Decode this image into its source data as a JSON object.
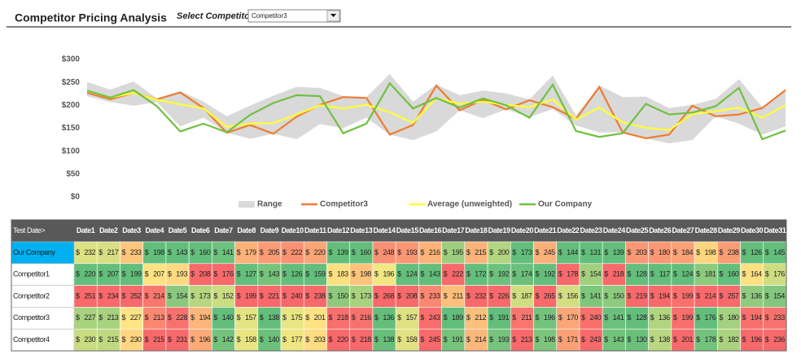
{
  "header": {
    "title": "Competitor Pricing Analysis",
    "select_label": "Select Competitor:",
    "selected": "Competitor3"
  },
  "chart_data": {
    "type": "line",
    "ylim": [
      0,
      300
    ],
    "yticks": [
      {
        "value": 0,
        "label": "$0"
      },
      {
        "value": 50,
        "label": "$50"
      },
      {
        "value": 100,
        "label": "$100"
      },
      {
        "value": 150,
        "label": "$150"
      },
      {
        "value": 200,
        "label": "$200"
      },
      {
        "value": 250,
        "label": "$250"
      },
      {
        "value": 300,
        "label": "$300"
      }
    ],
    "range": {
      "name": "Range",
      "color": "#d9d9d9",
      "low": [
        220,
        207,
        199,
        207,
        154,
        173,
        140,
        127,
        138,
        126,
        159,
        150,
        173,
        136,
        124,
        143,
        189,
        172,
        191,
        174,
        192,
        156,
        141,
        141,
        128,
        117,
        124,
        176,
        160,
        136,
        154
      ],
      "high": [
        251,
        234,
        252,
        215,
        231,
        208,
        176,
        199,
        221,
        240,
        238,
        220,
        218,
        268,
        208,
        245,
        222,
        232,
        226,
        213,
        265,
        178,
        243,
        218,
        219,
        194,
        201,
        214,
        257,
        196,
        236
      ]
    },
    "series": [
      {
        "name": "Competitor3",
        "color": "#ed7d31",
        "values": [
          227,
          213,
          227,
          213,
          228,
          194,
          140,
          157,
          138,
          175,
          201,
          218,
          216,
          136,
          157,
          243,
          189,
          212,
          191,
          211,
          196,
          170,
          240,
          141,
          128,
          136,
          199,
          176,
          180,
          194,
          233
        ]
      },
      {
        "name": "Average (unweighted)",
        "color": "#ffff33",
        "values": [
          232,
          217,
          227,
          212,
          202,
          193,
          153,
          160,
          161,
          180,
          200,
          193,
          201,
          185,
          162,
          216,
          203,
          208,
          201,
          196,
          213,
          169,
          195,
          163,
          151,
          146,
          181,
          187,
          195,
          173,
          200
        ]
      },
      {
        "name": "Our Company",
        "color": "#70c040",
        "values": [
          232,
          217,
          233,
          198,
          143,
          160,
          141,
          179,
          205,
          222,
          220,
          139,
          160,
          248,
          193,
          216,
          195,
          215,
          200,
          173,
          245,
          144,
          131,
          139,
          203,
          180,
          184,
          198,
          238,
          126,
          145
        ]
      }
    ]
  },
  "table": {
    "corner": "Test Date>",
    "currency": "$",
    "color_scale": [
      "#63be7b",
      "#ffeb84",
      "#f8696b"
    ],
    "columns": [
      "Date1",
      "Date2",
      "Date3",
      "Date4",
      "Date5",
      "Date6",
      "Date7",
      "Date8",
      "Date9",
      "Date10",
      "Date11",
      "Date12",
      "Date13",
      "Date14",
      "Date15",
      "Date16",
      "Date17",
      "Date18",
      "Date19",
      "Date20",
      "Date21",
      "Date22",
      "Date23",
      "Date24",
      "Date25",
      "Date26",
      "Date27",
      "Date28",
      "Date29",
      "Date30",
      "Date31"
    ],
    "rows": [
      {
        "name": "Our Company",
        "values": [
          232,
          217,
          233,
          198,
          143,
          160,
          141,
          179,
          205,
          222,
          220,
          139,
          160,
          248,
          193,
          216,
          195,
          215,
          200,
          173,
          245,
          144,
          131,
          139,
          203,
          180,
          184,
          198,
          238,
          126,
          145
        ]
      },
      {
        "name": "Competitor1",
        "values": [
          220,
          207,
          199,
          207,
          193,
          208,
          176,
          127,
          143,
          126,
          159,
          183,
          198,
          196,
          124,
          143,
          222,
          172,
          192,
          174,
          192,
          178,
          154,
          218,
          128,
          117,
          124,
          181,
          160,
          164,
          176
        ]
      },
      {
        "name": "Competitor2",
        "values": [
          251,
          234,
          252,
          214,
          154,
          173,
          152,
          199,
          221,
          240,
          238,
          150,
          173,
          268,
          208,
          233,
          211,
          232,
          226,
          187,
          265,
          156,
          141,
          150,
          219,
          194,
          199,
          214,
          257,
          136,
          154
        ]
      },
      {
        "name": "Competitor3",
        "values": [
          227,
          213,
          227,
          213,
          228,
          194,
          140,
          157,
          138,
          175,
          201,
          218,
          216,
          136,
          157,
          243,
          189,
          212,
          191,
          211,
          196,
          170,
          240,
          141,
          128,
          136,
          199,
          176,
          180,
          194,
          233
        ]
      },
      {
        "name": "Competitor4",
        "values": [
          230,
          215,
          230,
          215,
          231,
          196,
          142,
          158,
          140,
          177,
          203,
          220,
          218,
          138,
          158,
          245,
          191,
          214,
          193,
          213,
          198,
          171,
          243,
          143,
          130,
          138,
          201,
          178,
          182,
          196,
          236
        ]
      }
    ]
  }
}
